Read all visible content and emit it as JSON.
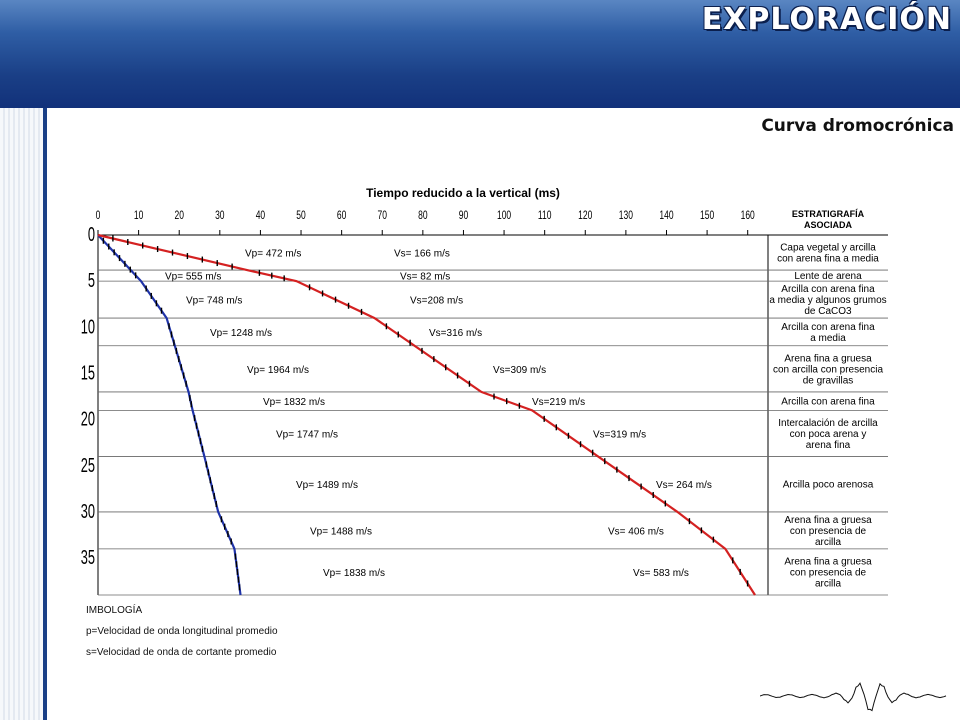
{
  "header": {
    "title": "EXPLORACIÓN"
  },
  "subtitle": "Curva dromocrónica",
  "colors": {
    "header_blue": "#1a3f86",
    "p_wave": "#1f33a8",
    "s_wave": "#d42121"
  },
  "icons": {
    "seismogram": "seismogram-icon"
  },
  "legend": {
    "heading": "IMBOLOGÍA",
    "p_text": "p=Velocidad de onda longitudinal promedio",
    "s_text": "s=Velocidad de onda de cortante promedio"
  },
  "chart_data": {
    "type": "line",
    "title": "Tiempo reducido a la vertical (ms)",
    "x_ticks": [
      0,
      10,
      20,
      30,
      40,
      50,
      60,
      70,
      80,
      90,
      100,
      110,
      120,
      130,
      140,
      150,
      160
    ],
    "xlim": [
      0,
      165
    ],
    "ylim": [
      0,
      39
    ],
    "y_ticks": [
      {
        "value": 0,
        "label": "0"
      },
      {
        "value": 5,
        "label": "5"
      },
      {
        "value": 10,
        "label": "10"
      },
      {
        "value": 15,
        "label": "15"
      },
      {
        "value": 20,
        "label": "20"
      },
      {
        "value": 25,
        "label": "25"
      },
      {
        "value": 30,
        "label": "30"
      },
      {
        "value": 35,
        "label": "35"
      }
    ],
    "layer_boundaries": [
      0,
      3.8,
      5,
      9,
      12,
      17,
      19,
      24,
      30,
      34,
      39
    ],
    "series": [
      {
        "x": [
          0,
          10.6,
          16.9,
          22.3,
          23.3,
          26.2,
          29.6,
          33.6,
          35.1
        ],
        "y": [
          0,
          5,
          9,
          17,
          19,
          24,
          30,
          34,
          39
        ]
      },
      {
        "x": [
          0,
          36.7,
          48.9,
          68.1,
          94.4,
          106.9,
          142.7,
          154.5,
          161.8
        ],
        "y": [
          0,
          3.8,
          5,
          9,
          17,
          19,
          30,
          34,
          39
        ]
      }
    ],
    "vp_labels": [
      "Vp= 472 m/s",
      "Vp= 555 m/s",
      "Vp= 748 m/s",
      "Vp= 1248 m/s",
      "Vp= 1964 m/s",
      "Vp= 1832 m/s",
      "Vp= 1747 m/s",
      "Vp= 1489 m/s",
      "Vp= 1488 m/s",
      "Vp= 1838 m/s"
    ],
    "vs_labels": [
      "Vs= 166 m/s",
      "Vs= 82 m/s",
      "Vs=208 m/s",
      "Vs=316 m/s",
      "Vs=309 m/s",
      "Vs=219 m/s",
      "Vs=319 m/s",
      "Vs= 264 m/s",
      "Vs= 406 m/s",
      "Vs= 583 m/s"
    ],
    "strat_header": [
      "ESTRATIGRAFÍA",
      "ASOCIADA"
    ],
    "strat_labels": [
      [
        "Capa vegetal y arcilla",
        "con arena fina a media"
      ],
      [
        "Lente de arena"
      ],
      [
        "Arcilla con arena fina",
        "a media y algunos grumos",
        "de CaCO3"
      ],
      [
        "Arcilla con arena fina",
        "a media"
      ],
      [
        "Arena fina a gruesa",
        "con arcilla con presencia",
        "de gravillas"
      ],
      [
        "Arcilla con arena fina"
      ],
      [
        "Intercalación de arcilla",
        "con poca arena y",
        "arena fina"
      ],
      [
        "Arcilla poco arenosa"
      ],
      [
        "Arena fina a gruesa",
        "con presencia de",
        "arcilla"
      ],
      [
        "Arena fina a gruesa",
        "con presencia de",
        "arcilla"
      ]
    ]
  }
}
